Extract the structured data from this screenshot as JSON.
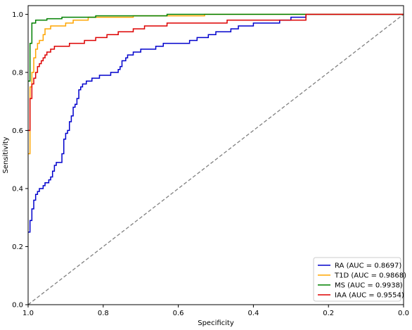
{
  "chart_data": {
    "type": "line",
    "title": "",
    "xlabel": "Specificity",
    "ylabel": "Sensitivity",
    "xlim": [
      1.0,
      0.0
    ],
    "ylim": [
      0.0,
      1.03
    ],
    "x_reversed": true,
    "xticks": [
      1.0,
      0.8,
      0.6,
      0.4,
      0.2,
      0.0
    ],
    "yticks": [
      0.0,
      0.2,
      0.4,
      0.6,
      0.8,
      1.0
    ],
    "xtick_labels": [
      "1.0",
      "0.8",
      "0.6",
      "0.4",
      "0.2",
      "0.0"
    ],
    "ytick_labels": [
      "0.0",
      "0.2",
      "0.4",
      "0.6",
      "0.8",
      "1.0"
    ],
    "grid": false,
    "legend_position": "bottom-right",
    "diagonal": {
      "style": "dashed",
      "color": "#808080",
      "points": [
        [
          1.0,
          0.0
        ],
        [
          0.0,
          1.0
        ]
      ]
    },
    "series": [
      {
        "name": "RA (AUC = 0.8697)",
        "color": "#0000cc",
        "points": [
          [
            1.0,
            0.25
          ],
          [
            0.995,
            0.25
          ],
          [
            0.995,
            0.29
          ],
          [
            0.99,
            0.29
          ],
          [
            0.99,
            0.33
          ],
          [
            0.985,
            0.33
          ],
          [
            0.985,
            0.36
          ],
          [
            0.98,
            0.36
          ],
          [
            0.98,
            0.38
          ],
          [
            0.975,
            0.38
          ],
          [
            0.975,
            0.39
          ],
          [
            0.97,
            0.39
          ],
          [
            0.97,
            0.4
          ],
          [
            0.96,
            0.4
          ],
          [
            0.96,
            0.41
          ],
          [
            0.955,
            0.41
          ],
          [
            0.955,
            0.42
          ],
          [
            0.945,
            0.42
          ],
          [
            0.945,
            0.43
          ],
          [
            0.94,
            0.43
          ],
          [
            0.94,
            0.44
          ],
          [
            0.935,
            0.44
          ],
          [
            0.935,
            0.46
          ],
          [
            0.93,
            0.46
          ],
          [
            0.93,
            0.48
          ],
          [
            0.925,
            0.48
          ],
          [
            0.925,
            0.49
          ],
          [
            0.91,
            0.49
          ],
          [
            0.91,
            0.52
          ],
          [
            0.905,
            0.52
          ],
          [
            0.905,
            0.57
          ],
          [
            0.9,
            0.57
          ],
          [
            0.9,
            0.59
          ],
          [
            0.895,
            0.59
          ],
          [
            0.895,
            0.6
          ],
          [
            0.89,
            0.6
          ],
          [
            0.89,
            0.63
          ],
          [
            0.885,
            0.63
          ],
          [
            0.885,
            0.65
          ],
          [
            0.88,
            0.65
          ],
          [
            0.88,
            0.68
          ],
          [
            0.875,
            0.68
          ],
          [
            0.875,
            0.69
          ],
          [
            0.87,
            0.69
          ],
          [
            0.87,
            0.71
          ],
          [
            0.865,
            0.71
          ],
          [
            0.865,
            0.74
          ],
          [
            0.86,
            0.74
          ],
          [
            0.86,
            0.75
          ],
          [
            0.855,
            0.75
          ],
          [
            0.855,
            0.76
          ],
          [
            0.845,
            0.76
          ],
          [
            0.845,
            0.77
          ],
          [
            0.83,
            0.77
          ],
          [
            0.83,
            0.78
          ],
          [
            0.81,
            0.78
          ],
          [
            0.81,
            0.79
          ],
          [
            0.78,
            0.79
          ],
          [
            0.78,
            0.8
          ],
          [
            0.76,
            0.8
          ],
          [
            0.76,
            0.81
          ],
          [
            0.755,
            0.81
          ],
          [
            0.755,
            0.82
          ],
          [
            0.75,
            0.82
          ],
          [
            0.75,
            0.84
          ],
          [
            0.74,
            0.84
          ],
          [
            0.74,
            0.85
          ],
          [
            0.735,
            0.85
          ],
          [
            0.735,
            0.86
          ],
          [
            0.72,
            0.86
          ],
          [
            0.72,
            0.87
          ],
          [
            0.7,
            0.87
          ],
          [
            0.7,
            0.88
          ],
          [
            0.66,
            0.88
          ],
          [
            0.66,
            0.89
          ],
          [
            0.64,
            0.89
          ],
          [
            0.64,
            0.9
          ],
          [
            0.57,
            0.9
          ],
          [
            0.57,
            0.91
          ],
          [
            0.55,
            0.91
          ],
          [
            0.55,
            0.92
          ],
          [
            0.52,
            0.92
          ],
          [
            0.52,
            0.93
          ],
          [
            0.5,
            0.93
          ],
          [
            0.5,
            0.94
          ],
          [
            0.46,
            0.94
          ],
          [
            0.46,
            0.95
          ],
          [
            0.44,
            0.95
          ],
          [
            0.44,
            0.96
          ],
          [
            0.4,
            0.96
          ],
          [
            0.4,
            0.97
          ],
          [
            0.33,
            0.97
          ],
          [
            0.33,
            0.98
          ],
          [
            0.3,
            0.98
          ],
          [
            0.3,
            0.99
          ],
          [
            0.26,
            0.99
          ],
          [
            0.26,
            1.0
          ],
          [
            0.0,
            1.0
          ]
        ]
      },
      {
        "name": "T1D (AUC = 0.9868)",
        "color": "#ffa500",
        "points": [
          [
            1.0,
            0.52
          ],
          [
            0.995,
            0.52
          ],
          [
            0.995,
            0.75
          ],
          [
            0.99,
            0.75
          ],
          [
            0.99,
            0.8
          ],
          [
            0.985,
            0.8
          ],
          [
            0.985,
            0.85
          ],
          [
            0.98,
            0.85
          ],
          [
            0.98,
            0.88
          ],
          [
            0.975,
            0.88
          ],
          [
            0.975,
            0.9
          ],
          [
            0.97,
            0.9
          ],
          [
            0.97,
            0.91
          ],
          [
            0.96,
            0.91
          ],
          [
            0.96,
            0.93
          ],
          [
            0.955,
            0.93
          ],
          [
            0.955,
            0.95
          ],
          [
            0.94,
            0.95
          ],
          [
            0.94,
            0.96
          ],
          [
            0.9,
            0.96
          ],
          [
            0.9,
            0.97
          ],
          [
            0.88,
            0.97
          ],
          [
            0.88,
            0.98
          ],
          [
            0.84,
            0.98
          ],
          [
            0.84,
            0.99
          ],
          [
            0.72,
            0.99
          ],
          [
            0.72,
            0.995
          ],
          [
            0.53,
            0.995
          ],
          [
            0.53,
            1.0
          ],
          [
            0.0,
            1.0
          ]
        ]
      },
      {
        "name": "MS (AUC = 0.9938)",
        "color": "#008000",
        "points": [
          [
            1.0,
            0.77
          ],
          [
            0.995,
            0.77
          ],
          [
            0.995,
            0.9
          ],
          [
            0.99,
            0.9
          ],
          [
            0.99,
            0.97
          ],
          [
            0.98,
            0.97
          ],
          [
            0.98,
            0.98
          ],
          [
            0.95,
            0.98
          ],
          [
            0.95,
            0.985
          ],
          [
            0.91,
            0.985
          ],
          [
            0.91,
            0.99
          ],
          [
            0.82,
            0.99
          ],
          [
            0.82,
            0.995
          ],
          [
            0.63,
            0.995
          ],
          [
            0.63,
            1.0
          ],
          [
            0.0,
            1.0
          ]
        ]
      },
      {
        "name": "IAA (AUC = 0.9554)",
        "color": "#dd0000",
        "points": [
          [
            1.0,
            0.6
          ],
          [
            0.995,
            0.6
          ],
          [
            0.995,
            0.71
          ],
          [
            0.99,
            0.71
          ],
          [
            0.99,
            0.76
          ],
          [
            0.985,
            0.76
          ],
          [
            0.985,
            0.78
          ],
          [
            0.98,
            0.78
          ],
          [
            0.98,
            0.8
          ],
          [
            0.975,
            0.8
          ],
          [
            0.975,
            0.82
          ],
          [
            0.97,
            0.82
          ],
          [
            0.97,
            0.83
          ],
          [
            0.965,
            0.83
          ],
          [
            0.965,
            0.84
          ],
          [
            0.96,
            0.84
          ],
          [
            0.96,
            0.85
          ],
          [
            0.955,
            0.85
          ],
          [
            0.955,
            0.86
          ],
          [
            0.95,
            0.86
          ],
          [
            0.95,
            0.87
          ],
          [
            0.94,
            0.87
          ],
          [
            0.94,
            0.88
          ],
          [
            0.93,
            0.88
          ],
          [
            0.93,
            0.89
          ],
          [
            0.89,
            0.89
          ],
          [
            0.89,
            0.9
          ],
          [
            0.85,
            0.9
          ],
          [
            0.85,
            0.91
          ],
          [
            0.82,
            0.91
          ],
          [
            0.82,
            0.92
          ],
          [
            0.79,
            0.92
          ],
          [
            0.79,
            0.93
          ],
          [
            0.76,
            0.93
          ],
          [
            0.76,
            0.94
          ],
          [
            0.72,
            0.94
          ],
          [
            0.72,
            0.95
          ],
          [
            0.69,
            0.95
          ],
          [
            0.69,
            0.96
          ],
          [
            0.63,
            0.96
          ],
          [
            0.63,
            0.97
          ],
          [
            0.47,
            0.97
          ],
          [
            0.47,
            0.98
          ],
          [
            0.26,
            0.98
          ],
          [
            0.26,
            1.0
          ],
          [
            0.0,
            1.0
          ]
        ]
      }
    ]
  }
}
